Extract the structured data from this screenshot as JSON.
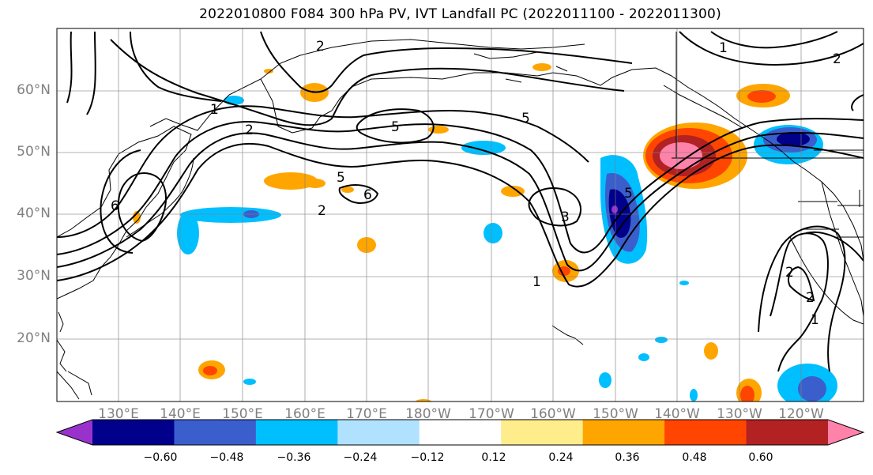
{
  "title": "2022010800 F084 300 hPa PV, IVT Landfall PC (2022011100 - 2022011300)",
  "map": {
    "latitude_labels": [
      "60°N",
      "50°N",
      "40°N",
      "30°N",
      "20°N"
    ],
    "longitude_labels": [
      "130°E",
      "140°E",
      "150°E",
      "160°E",
      "170°E",
      "180°W",
      "170°W",
      "160°W",
      "150°W",
      "140°W",
      "130°W",
      "120°W"
    ],
    "pv_contour_labels": [
      "2",
      "1",
      "2",
      "5",
      "6",
      "5",
      "1",
      "2",
      "5",
      "6",
      "5",
      "3",
      "2",
      "1",
      "1",
      "2",
      "2"
    ]
  },
  "colorbar": {
    "tick_labels": [
      "−0.60",
      "−0.48",
      "−0.36",
      "−0.24",
      "−0.12",
      "0.12",
      "0.24",
      "0.36",
      "0.48",
      "0.60"
    ],
    "colors": [
      "#9932cc",
      "#00008b",
      "#3a5fcd",
      "#00bfff",
      "#b0e2ff",
      "#ffffff",
      "#ffec8b",
      "#ffa500",
      "#ff4500",
      "#b22222",
      "#ff82ab"
    ]
  }
}
